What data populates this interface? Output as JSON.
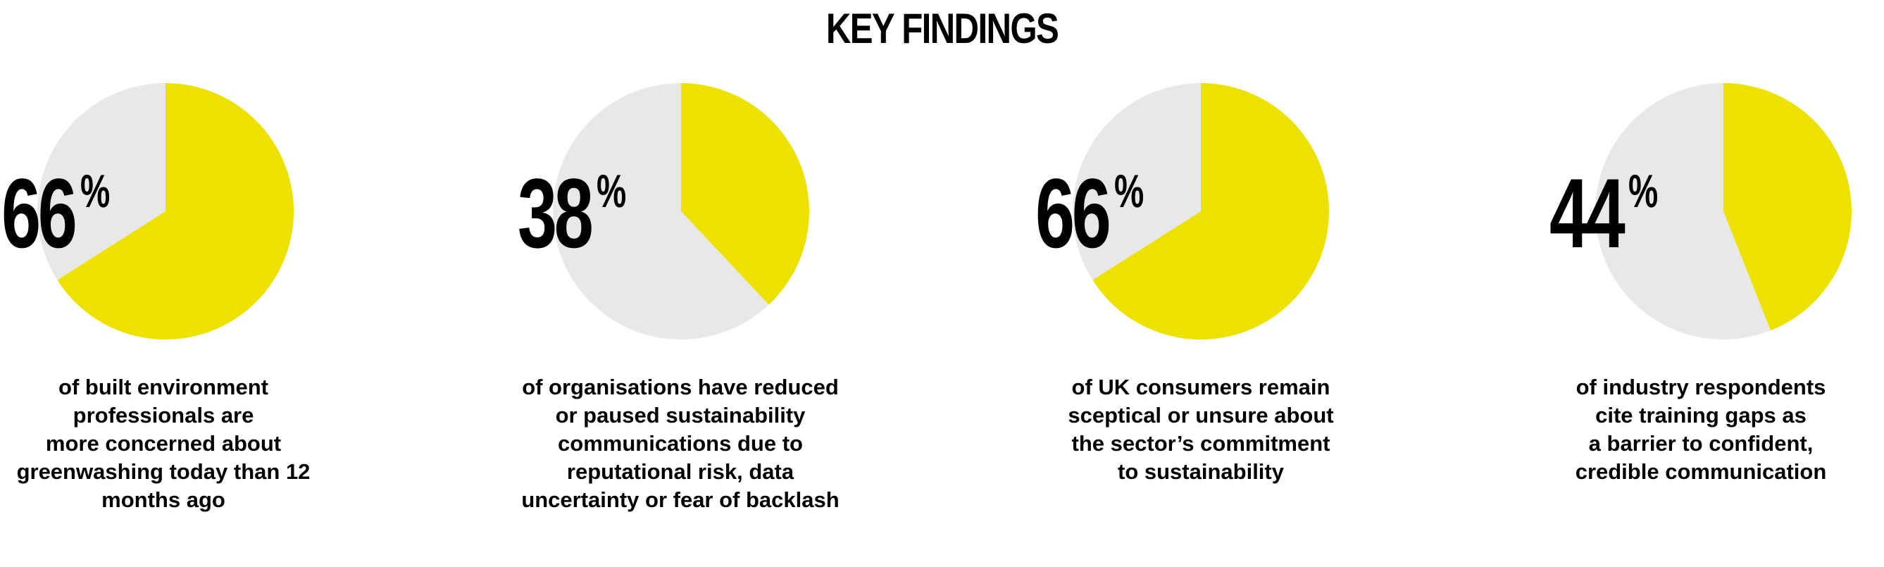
{
  "header": {
    "title": "KEY FINDINGS"
  },
  "colors": {
    "highlight": "#ede100",
    "remainder": "#e8e8e8",
    "text": "#000000",
    "background": "#ffffff"
  },
  "findings": [
    {
      "value": "66",
      "unit": "%",
      "caption_lines": [
        "of built environment",
        "professionals are",
        "more concerned about",
        "greenwashing today than 12",
        "months ago"
      ]
    },
    {
      "value": "38",
      "unit": "%",
      "caption_lines": [
        "of organisations have reduced",
        "or paused sustainability",
        "communications due to",
        "reputational risk, data",
        "uncertainty or fear of backlash"
      ]
    },
    {
      "value": "66",
      "unit": "%",
      "caption_lines": [
        "of UK consumers remain",
        "sceptical or unsure about",
        "the sector’s commitment",
        "to sustainability"
      ]
    },
    {
      "value": "44",
      "unit": "%",
      "caption_lines": [
        "of industry respondents",
        "cite training gaps as",
        "a barrier to confident,",
        "credible communication"
      ]
    }
  ],
  "chart_data": [
    {
      "type": "pie",
      "slices": [
        {
          "value": 66,
          "color": "#ede100"
        },
        {
          "value": 34,
          "color": "#e8e8e8"
        }
      ]
    },
    {
      "type": "pie",
      "slices": [
        {
          "value": 38,
          "color": "#ede100"
        },
        {
          "value": 62,
          "color": "#e8e8e8"
        }
      ]
    },
    {
      "type": "pie",
      "slices": [
        {
          "value": 66,
          "color": "#ede100"
        },
        {
          "value": 34,
          "color": "#e8e8e8"
        }
      ]
    },
    {
      "type": "pie",
      "slices": [
        {
          "value": 44,
          "color": "#ede100"
        },
        {
          "value": 56,
          "color": "#e8e8e8"
        }
      ]
    }
  ]
}
